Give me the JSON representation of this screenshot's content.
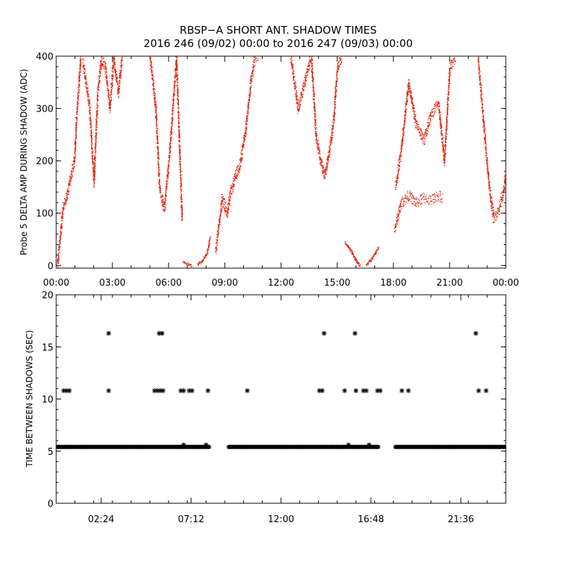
{
  "title_line1": "RBSP−A SHORT ANT. SHADOW TIMES",
  "title_line2": "2016 246 (09/02) 00:00 to 2016 247 (09/03) 00:00",
  "colors": {
    "red_series": "#e0200c",
    "black_series": "#000000",
    "axes": "#000000"
  },
  "chart_data": [
    {
      "type": "scatter",
      "ylabel": "Probe 5 DELTA AMP DURING SHADOW (ADC)",
      "xlim": [
        0,
        24
      ],
      "ylim": [
        -5,
        400
      ],
      "x_tick_values": [
        0,
        3,
        6,
        9,
        12,
        15,
        18,
        21,
        24
      ],
      "x_tick_labels": [
        "00:00",
        "03:00",
        "06:00",
        "09:00",
        "12:00",
        "15:00",
        "18:00",
        "21:00",
        "00:00"
      ],
      "y_tick_values": [
        0,
        100,
        200,
        300,
        400
      ],
      "y_tick_labels": [
        "0",
        "100",
        "200",
        "300",
        "400"
      ],
      "marker": "dot",
      "color": "#e0200c",
      "segments": [
        {
          "x": [
            0.05,
            0.35,
            0.6,
            0.75,
            0.95,
            1.1,
            1.3
          ],
          "y": [
            0,
            110,
            140,
            170,
            200,
            300,
            400
          ]
        },
        {
          "x": [
            1.4,
            1.75,
            2.0,
            2.2,
            2.4,
            2.6,
            2.85,
            3.05,
            3.3,
            3.5
          ],
          "y": [
            390,
            310,
            160,
            330,
            395,
            380,
            300,
            400,
            330,
            400
          ]
        },
        {
          "x": [
            5.0,
            5.3,
            5.5,
            5.75,
            5.95,
            6.15,
            6.4,
            6.7
          ],
          "y": [
            400,
            300,
            150,
            110,
            180,
            270,
            400,
            90
          ]
        },
        {
          "x": [
            6.75,
            7.0,
            7.25
          ],
          "y": [
            8,
            3,
            0
          ]
        },
        {
          "x": [
            7.55,
            7.8,
            8.05,
            8.2
          ],
          "y": [
            2,
            10,
            25,
            55
          ]
        },
        {
          "x": [
            8.5,
            8.85,
            9.1,
            9.3,
            9.55,
            9.8,
            10.1,
            10.4,
            10.6,
            10.8
          ],
          "y": [
            30,
            130,
            100,
            140,
            170,
            195,
            260,
            360,
            400,
            400
          ]
        },
        {
          "x": [
            12.5,
            12.9,
            13.3,
            13.6,
            13.85,
            14.1,
            14.3,
            14.55,
            14.8,
            15.0,
            15.25
          ],
          "y": [
            400,
            300,
            360,
            400,
            250,
            200,
            170,
            215,
            280,
            380,
            400
          ]
        },
        {
          "x": [
            15.4,
            15.7,
            16.0,
            16.2
          ],
          "y": [
            45,
            30,
            10,
            0
          ]
        },
        {
          "x": [
            16.55,
            16.85,
            17.2
          ],
          "y": [
            2,
            15,
            35
          ]
        },
        {
          "x": [
            18.05,
            18.4,
            18.8,
            19.2,
            19.6,
            20.0,
            20.4,
            20.6
          ],
          "y": [
            70,
            120,
            135,
            120,
            130,
            125,
            135,
            130
          ]
        },
        {
          "x": [
            18.1,
            18.4,
            18.8,
            19.2,
            19.6,
            20.0,
            20.4,
            20.7,
            21.0,
            21.3
          ],
          "y": [
            150,
            220,
            350,
            270,
            240,
            290,
            310,
            200,
            380,
            400
          ]
        },
        {
          "x": [
            22.5,
            22.85,
            23.1,
            23.35,
            23.6,
            23.85,
            24.0
          ],
          "y": [
            400,
            250,
            150,
            90,
            105,
            140,
            180
          ]
        }
      ]
    },
    {
      "type": "scatter",
      "ylabel": "TIME BETWEEN SHADOWS (SEC)",
      "xlim": [
        0,
        24
      ],
      "ylim": [
        0,
        20
      ],
      "x_tick_values": [
        2.4,
        7.2,
        12.0,
        16.8,
        21.6
      ],
      "x_tick_labels": [
        "02:24",
        "07:12",
        "12:00",
        "16:48",
        "21:36"
      ],
      "y_tick_values": [
        0,
        5,
        10,
        15,
        20
      ],
      "y_tick_labels": [
        "0",
        "5",
        "10",
        "15",
        "20"
      ],
      "marker": "asterisk",
      "color": "#000000",
      "baseline_y": 5.4,
      "baseline_ranges": [
        [
          0.05,
          8.2
        ],
        [
          9.2,
          17.2
        ],
        [
          18.1,
          24.0
        ]
      ],
      "points": [
        {
          "x": 0.4,
          "y": 10.8
        },
        {
          "x": 0.55,
          "y": 10.8
        },
        {
          "x": 0.7,
          "y": 10.8
        },
        {
          "x": 2.8,
          "y": 16.3
        },
        {
          "x": 2.8,
          "y": 10.8
        },
        {
          "x": 5.25,
          "y": 10.8
        },
        {
          "x": 5.4,
          "y": 10.8
        },
        {
          "x": 5.55,
          "y": 10.8
        },
        {
          "x": 5.7,
          "y": 10.8
        },
        {
          "x": 5.5,
          "y": 16.3
        },
        {
          "x": 5.65,
          "y": 16.3
        },
        {
          "x": 6.65,
          "y": 10.8
        },
        {
          "x": 6.8,
          "y": 10.8
        },
        {
          "x": 7.1,
          "y": 10.8
        },
        {
          "x": 7.25,
          "y": 10.8
        },
        {
          "x": 8.1,
          "y": 10.8
        },
        {
          "x": 10.2,
          "y": 10.8
        },
        {
          "x": 14.05,
          "y": 10.8
        },
        {
          "x": 14.2,
          "y": 10.8
        },
        {
          "x": 14.3,
          "y": 16.3
        },
        {
          "x": 15.4,
          "y": 10.8
        },
        {
          "x": 15.95,
          "y": 16.3
        },
        {
          "x": 16.0,
          "y": 10.8
        },
        {
          "x": 16.4,
          "y": 10.8
        },
        {
          "x": 16.55,
          "y": 10.8
        },
        {
          "x": 17.15,
          "y": 10.8
        },
        {
          "x": 17.3,
          "y": 10.8
        },
        {
          "x": 18.45,
          "y": 10.8
        },
        {
          "x": 18.8,
          "y": 10.8
        },
        {
          "x": 22.4,
          "y": 16.3
        },
        {
          "x": 22.55,
          "y": 10.8
        },
        {
          "x": 22.95,
          "y": 10.8
        },
        {
          "x": 6.8,
          "y": 5.6
        },
        {
          "x": 8.0,
          "y": 5.6
        },
        {
          "x": 15.6,
          "y": 5.6
        },
        {
          "x": 16.7,
          "y": 5.6
        }
      ]
    }
  ]
}
